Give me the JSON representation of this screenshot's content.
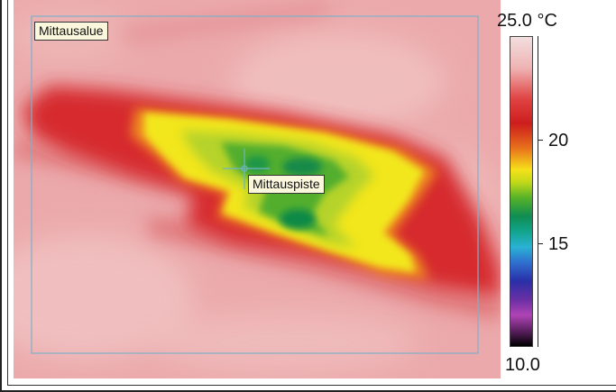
{
  "image": {
    "area_label": "Mittausalue",
    "spot_label": "Mittauspiste"
  },
  "scale": {
    "max_label": "25.0 °C",
    "min_label": "10.0",
    "ticks": [
      "20",
      "15"
    ]
  },
  "colors": {
    "frame": "#7fb0c8",
    "crosshair": "#6fb4c4",
    "label_bg": "#fbf7dc"
  }
}
